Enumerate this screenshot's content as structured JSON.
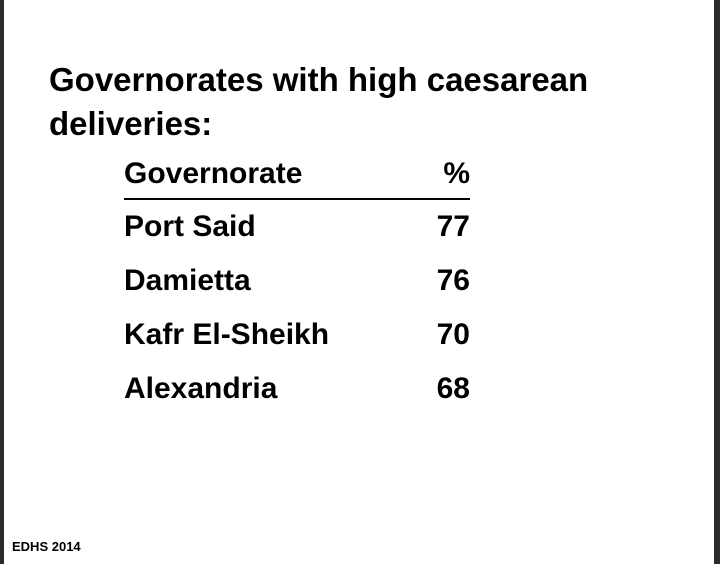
{
  "slide": {
    "title": "Governorates with high caesarean deliveries:",
    "table": {
      "headers": [
        "Governorate",
        "%"
      ],
      "rows": [
        {
          "governorate": "Port Said",
          "percent": "77"
        },
        {
          "governorate": "Damietta",
          "percent": "76"
        },
        {
          "governorate": "Kafr El-Sheikh",
          "percent": "70"
        },
        {
          "governorate": "Alexandria",
          "percent": "68"
        }
      ]
    },
    "source": "EDHS 2014"
  }
}
